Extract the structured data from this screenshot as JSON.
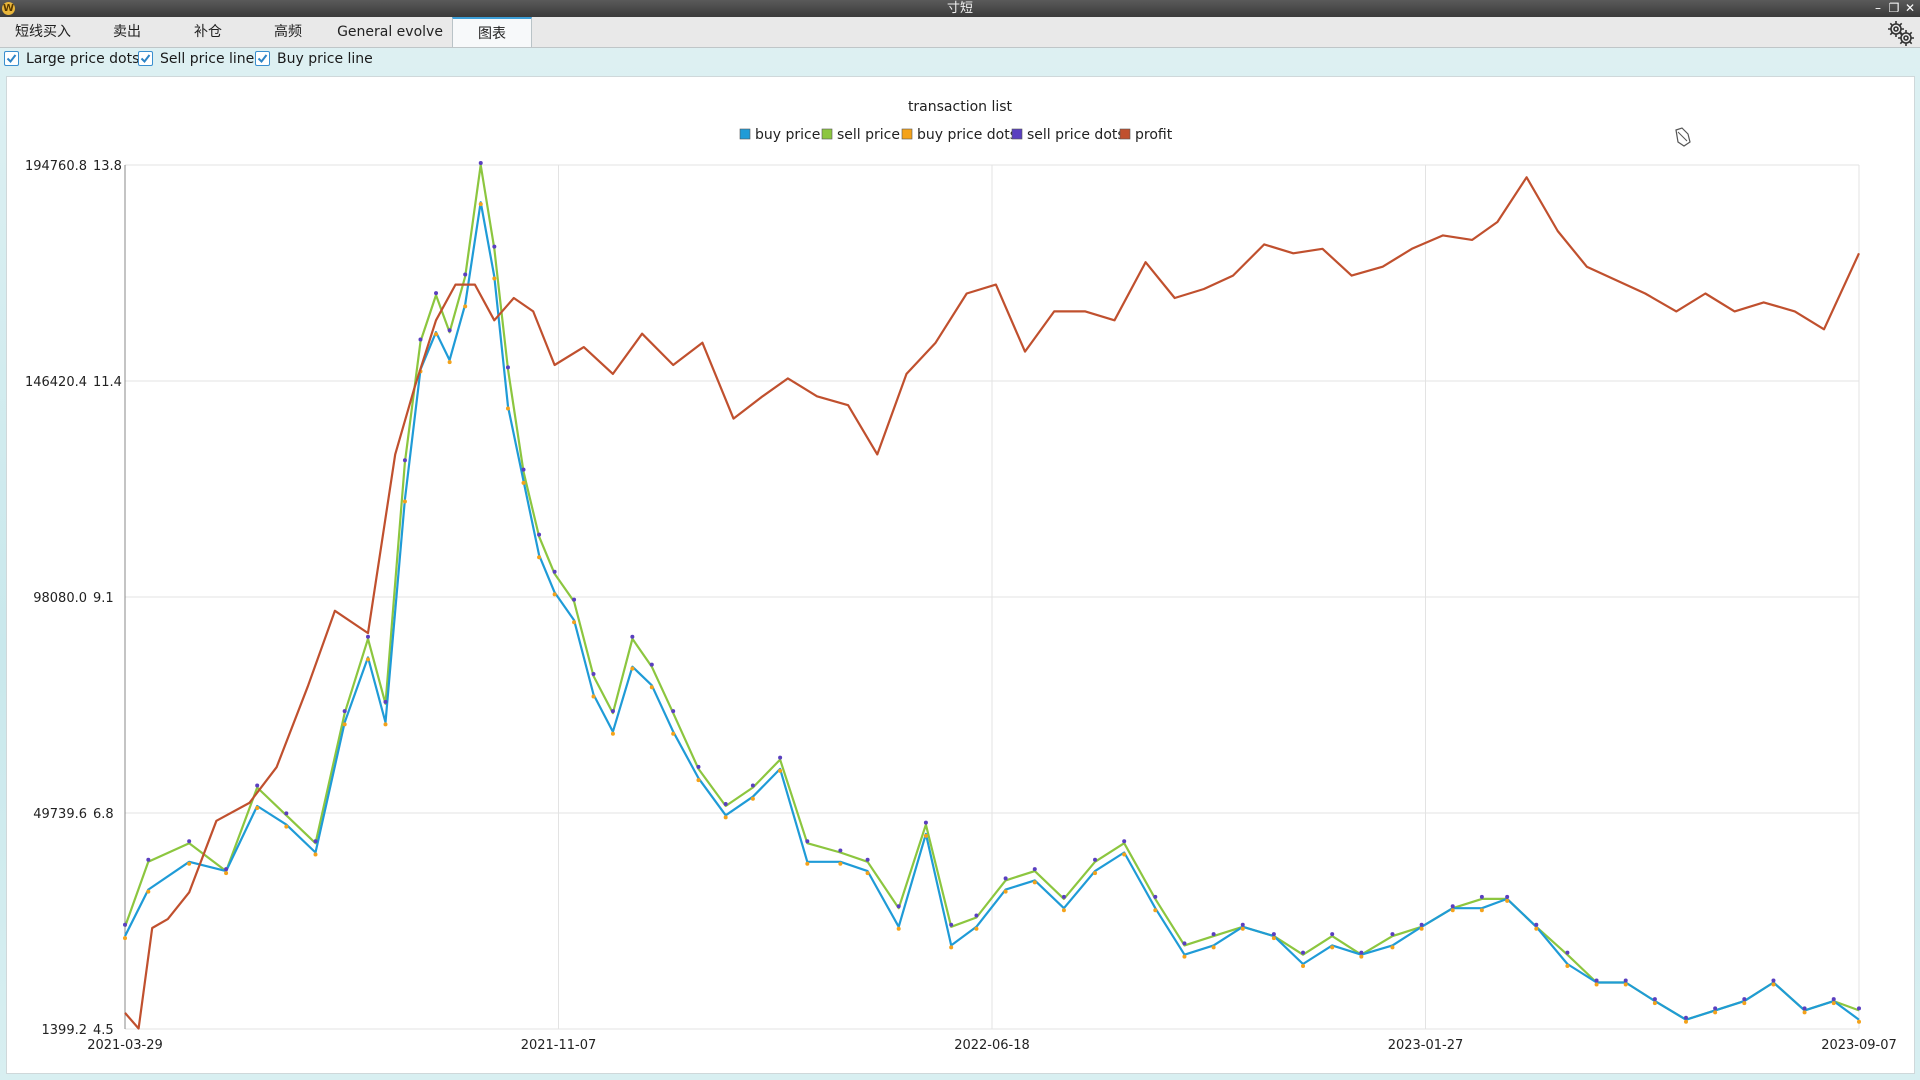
{
  "window": {
    "title": "寸短"
  },
  "tabs": [
    {
      "label": "短线买入",
      "active": false
    },
    {
      "label": "卖出",
      "active": false
    },
    {
      "label": "补仓",
      "active": false
    },
    {
      "label": "高频",
      "active": false
    },
    {
      "label": "General evolve",
      "active": false
    },
    {
      "label": "图表",
      "active": true
    }
  ],
  "options": [
    {
      "label": "Large price dots",
      "checked": true
    },
    {
      "label": "Sell price line",
      "checked": true
    },
    {
      "label": "Buy price line",
      "checked": true
    }
  ],
  "colors": {
    "buy": "#1f9bd7",
    "sell": "#8cc63f",
    "buy_dots": "#f4a21a",
    "sell_dots": "#5a3fc0",
    "profit": "#c0502e",
    "grid": "#e3e3e3",
    "check": "#2d84c6"
  },
  "chart_data": {
    "type": "line",
    "title": "transaction list",
    "legend": [
      "buy price",
      "sell price",
      "buy price dots",
      "sell price dots",
      "profit"
    ],
    "legend_position": "top-center",
    "grid": true,
    "x_ticks": [
      "2021-03-29",
      "2021-11-07",
      "2022-06-18",
      "2023-01-27",
      "2023-09-07"
    ],
    "x_range": [
      "2021-03-29",
      "2023-09-07"
    ],
    "y_left_ticks": [
      "194760.8",
      "146420.4",
      "98080.0",
      "49739.6",
      "1399.2"
    ],
    "y_left_range": [
      1399.2,
      194760.8
    ],
    "y_right_ticks": [
      "13.8",
      "11.4",
      "9.1",
      "6.8",
      "4.5"
    ],
    "y_right_range": [
      4.5,
      13.8
    ],
    "series": [
      {
        "name": "buy price",
        "axis": "right",
        "x": [
          "2021-03-29",
          "2021-04-10",
          "2021-05-01",
          "2021-05-20",
          "2021-06-05",
          "2021-06-20",
          "2021-07-05",
          "2021-07-20",
          "2021-08-01",
          "2021-08-10",
          "2021-08-20",
          "2021-08-28",
          "2021-09-05",
          "2021-09-12",
          "2021-09-20",
          "2021-09-28",
          "2021-10-05",
          "2021-10-12",
          "2021-10-20",
          "2021-10-28",
          "2021-11-05",
          "2021-11-15",
          "2021-11-25",
          "2021-12-05",
          "2021-12-15",
          "2021-12-25",
          "2022-01-05",
          "2022-01-18",
          "2022-02-01",
          "2022-02-15",
          "2022-03-01",
          "2022-03-15",
          "2022-04-01",
          "2022-04-15",
          "2022-05-01",
          "2022-05-15",
          "2022-05-28",
          "2022-06-10",
          "2022-06-25",
          "2022-07-10",
          "2022-07-25",
          "2022-08-10",
          "2022-08-25",
          "2022-09-10",
          "2022-09-25",
          "2022-10-10",
          "2022-10-25",
          "2022-11-10",
          "2022-11-25",
          "2022-12-10",
          "2022-12-25",
          "2023-01-10",
          "2023-01-25",
          "2023-02-10",
          "2023-02-25",
          "2023-03-10",
          "2023-03-25",
          "2023-04-10",
          "2023-04-25",
          "2023-05-10",
          "2023-05-25",
          "2023-06-10",
          "2023-06-25",
          "2023-07-10",
          "2023-07-25",
          "2023-08-10",
          "2023-08-25",
          "2023-09-07"
        ],
        "values": [
          5.5,
          6.0,
          6.3,
          6.2,
          6.9,
          6.7,
          6.4,
          7.8,
          8.5,
          7.8,
          10.2,
          11.6,
          12.0,
          11.7,
          12.3,
          13.4,
          12.6,
          11.2,
          10.4,
          9.6,
          9.2,
          8.9,
          8.1,
          7.7,
          8.4,
          8.2,
          7.7,
          7.2,
          6.8,
          7.0,
          7.3,
          6.3,
          6.3,
          6.2,
          5.6,
          6.6,
          5.4,
          5.6,
          6.0,
          6.1,
          5.8,
          6.2,
          6.4,
          5.8,
          5.3,
          5.4,
          5.6,
          5.5,
          5.2,
          5.4,
          5.3,
          5.4,
          5.6,
          5.8,
          5.8,
          5.9,
          5.6,
          5.2,
          5.0,
          5.0,
          4.8,
          4.6,
          4.7,
          4.8,
          5.0,
          4.7,
          4.8,
          4.6
        ]
      },
      {
        "name": "sell price",
        "axis": "right",
        "x": [
          "2021-03-29",
          "2021-04-10",
          "2021-05-01",
          "2021-05-20",
          "2021-06-05",
          "2021-06-20",
          "2021-07-05",
          "2021-07-20",
          "2021-08-01",
          "2021-08-10",
          "2021-08-20",
          "2021-08-28",
          "2021-09-05",
          "2021-09-12",
          "2021-09-20",
          "2021-09-28",
          "2021-10-05",
          "2021-10-12",
          "2021-10-20",
          "2021-10-28",
          "2021-11-05",
          "2021-11-15",
          "2021-11-25",
          "2021-12-05",
          "2021-12-15",
          "2021-12-25",
          "2022-01-05",
          "2022-01-18",
          "2022-02-01",
          "2022-02-15",
          "2022-03-01",
          "2022-03-15",
          "2022-04-01",
          "2022-04-15",
          "2022-05-01",
          "2022-05-15",
          "2022-05-28",
          "2022-06-10",
          "2022-06-25",
          "2022-07-10",
          "2022-07-25",
          "2022-08-10",
          "2022-08-25",
          "2022-09-10",
          "2022-09-25",
          "2022-10-10",
          "2022-10-25",
          "2022-11-10",
          "2022-11-25",
          "2022-12-10",
          "2022-12-25",
          "2023-01-10",
          "2023-01-25",
          "2023-02-10",
          "2023-02-25",
          "2023-03-10",
          "2023-03-25",
          "2023-04-10",
          "2023-04-25",
          "2023-05-10",
          "2023-05-25",
          "2023-06-10",
          "2023-06-25",
          "2023-07-10",
          "2023-07-25",
          "2023-08-10",
          "2023-08-25",
          "2023-09-07"
        ],
        "values": [
          5.6,
          6.3,
          6.5,
          6.2,
          7.1,
          6.8,
          6.5,
          7.9,
          8.7,
          8.0,
          10.6,
          11.9,
          12.4,
          12.0,
          12.6,
          13.8,
          12.9,
          11.6,
          10.5,
          9.8,
          9.4,
          9.1,
          8.3,
          7.9,
          8.7,
          8.4,
          7.9,
          7.3,
          6.9,
          7.1,
          7.4,
          6.5,
          6.4,
          6.3,
          5.8,
          6.7,
          5.6,
          5.7,
          6.1,
          6.2,
          5.9,
          6.3,
          6.5,
          5.9,
          5.4,
          5.5,
          5.6,
          5.5,
          5.3,
          5.5,
          5.3,
          5.5,
          5.6,
          5.8,
          5.9,
          5.9,
          5.6,
          5.3,
          5.0,
          5.0,
          4.8,
          4.6,
          4.7,
          4.8,
          5.0,
          4.7,
          4.8,
          4.7
        ]
      },
      {
        "name": "profit",
        "axis": "left",
        "x": [
          "2021-03-29",
          "2021-04-05",
          "2021-04-12",
          "2021-04-20",
          "2021-05-01",
          "2021-05-15",
          "2021-06-01",
          "2021-06-15",
          "2021-07-01",
          "2021-07-15",
          "2021-08-01",
          "2021-08-15",
          "2021-08-25",
          "2021-09-05",
          "2021-09-15",
          "2021-09-25",
          "2021-10-05",
          "2021-10-15",
          "2021-10-25",
          "2021-11-05",
          "2021-11-20",
          "2021-12-05",
          "2021-12-20",
          "2022-01-05",
          "2022-01-20",
          "2022-02-05",
          "2022-02-20",
          "2022-03-05",
          "2022-03-20",
          "2022-04-05",
          "2022-04-20",
          "2022-05-05",
          "2022-05-20",
          "2022-06-05",
          "2022-06-20",
          "2022-07-05",
          "2022-07-20",
          "2022-08-05",
          "2022-08-20",
          "2022-09-05",
          "2022-09-20",
          "2022-10-05",
          "2022-10-20",
          "2022-11-05",
          "2022-11-20",
          "2022-12-05",
          "2022-12-20",
          "2023-01-05",
          "2023-01-20",
          "2023-02-05",
          "2023-02-20",
          "2023-03-05",
          "2023-03-20",
          "2023-04-05",
          "2023-04-20",
          "2023-05-05",
          "2023-05-20",
          "2023-06-05",
          "2023-06-20",
          "2023-07-05",
          "2023-07-20",
          "2023-08-05",
          "2023-08-20",
          "2023-09-07"
        ],
        "values": [
          5000,
          1500,
          24000,
          26000,
          32000,
          48000,
          52000,
          60000,
          78000,
          95000,
          90000,
          130000,
          145000,
          160000,
          168000,
          168000,
          160000,
          165000,
          162000,
          150000,
          154000,
          148000,
          157000,
          150000,
          155000,
          138000,
          143000,
          147000,
          143000,
          141000,
          130000,
          148000,
          155000,
          166000,
          168000,
          153000,
          162000,
          162000,
          160000,
          173000,
          165000,
          167000,
          170000,
          177000,
          175000,
          176000,
          170000,
          172000,
          176000,
          179000,
          178000,
          182000,
          192000,
          180000,
          172000,
          169000,
          166000,
          162000,
          166000,
          162000,
          164000,
          162000,
          158000,
          175000
        ]
      }
    ]
  }
}
